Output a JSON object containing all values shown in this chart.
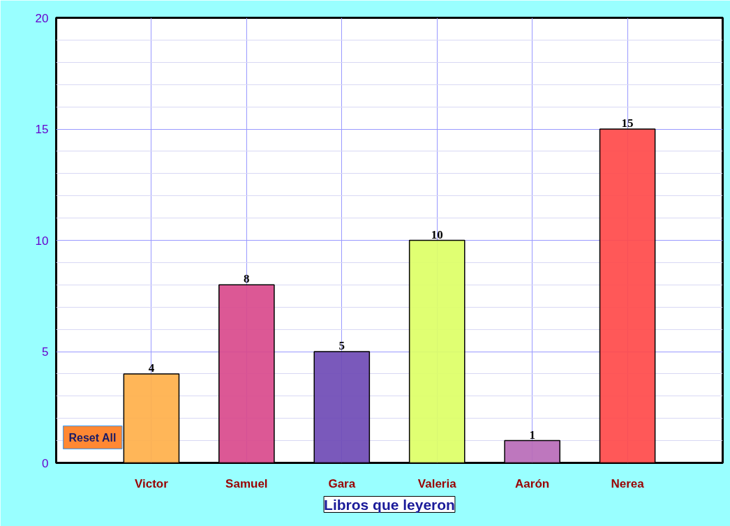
{
  "chart_data": {
    "type": "bar",
    "title": "Libros que leyeron",
    "categories": [
      "Victor",
      "Samuel",
      "Gara",
      "Valeria",
      "Aarón",
      "Nerea"
    ],
    "values": [
      4,
      8,
      5,
      10,
      1,
      15
    ],
    "colors": [
      "#ffb04a",
      "#d94a8c",
      "#6f4bb5",
      "#ddff66",
      "#b86bb8",
      "#ff4a4a"
    ],
    "ylim": [
      0,
      20
    ],
    "yticks": [
      0,
      5,
      10,
      15,
      20
    ],
    "grid": true,
    "data_labels": true,
    "annotations": [
      "Reset All"
    ]
  }
}
